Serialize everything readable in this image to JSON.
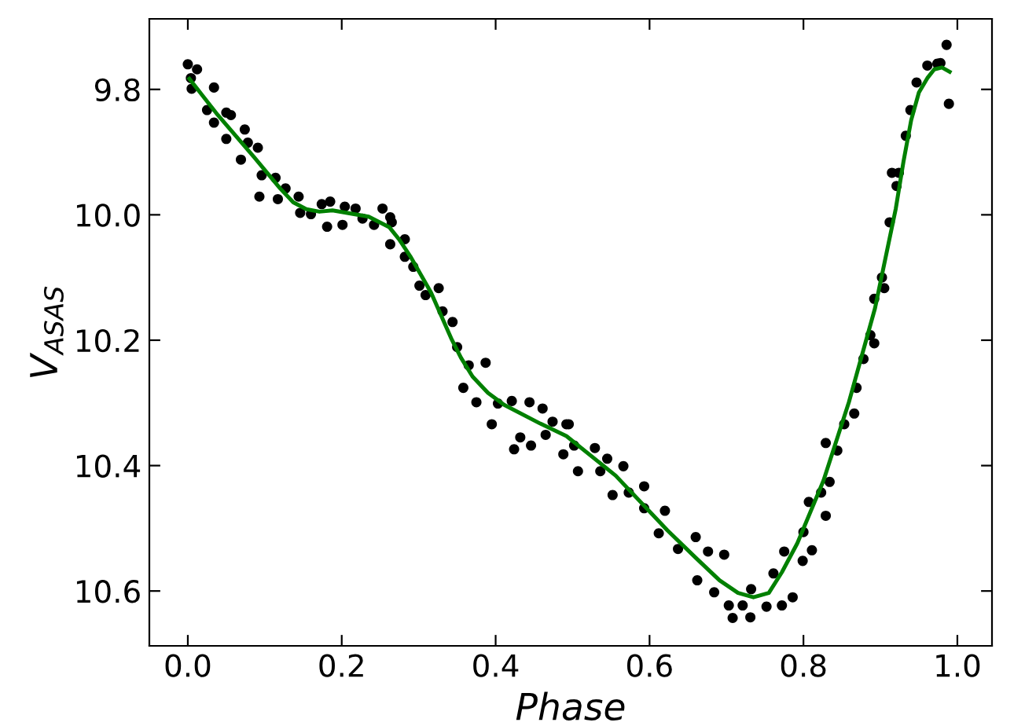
{
  "chart_data": {
    "type": "scatter",
    "xlabel": "Phase",
    "ylabel": "V$_{ASAS}$",
    "xlim": [
      -0.05,
      1.045
    ],
    "ylim": [
      10.6875,
      9.6875
    ],
    "xticks": [
      {
        "value": 0,
        "label": "0.0"
      },
      0.2,
      0.4,
      0.6,
      0.8,
      {
        "value": 1,
        "label": "1.0"
      }
    ],
    "yticks": [
      9.8,
      {
        "value": 10,
        "label": "10.0"
      },
      10.2,
      10.4,
      10.6
    ],
    "grid": false,
    "legend": false,
    "series": [
      {
        "color": "#000000",
        "marker": "circle",
        "x": [
          0.0,
          0.004,
          0.012,
          0.005,
          0.034,
          0.025,
          0.034,
          0.05,
          0.056,
          0.05,
          0.074,
          0.069,
          0.078,
          0.091,
          0.093,
          0.096,
          0.114,
          0.117,
          0.127,
          0.144,
          0.146,
          0.16,
          0.174,
          0.181,
          0.185,
          0.201,
          0.204,
          0.218,
          0.227,
          0.242,
          0.253,
          0.263,
          0.265,
          0.263,
          0.282,
          0.282,
          0.293,
          0.301,
          0.309,
          0.326,
          0.331,
          0.344,
          0.35,
          0.358,
          0.365,
          0.375,
          0.387,
          0.395,
          0.403,
          0.421,
          0.424,
          0.432,
          0.444,
          0.446,
          0.461,
          0.465,
          0.474,
          0.488,
          0.492,
          0.495,
          0.507,
          0.502,
          0.529,
          0.536,
          0.545,
          0.552,
          0.566,
          0.573,
          0.593,
          0.593,
          0.612,
          0.62,
          0.637,
          0.66,
          0.662,
          0.676,
          0.684,
          0.697,
          0.703,
          0.708,
          0.721,
          0.731,
          0.732,
          0.752,
          0.761,
          0.772,
          0.786,
          0.775,
          0.799,
          0.8,
          0.811,
          0.807,
          0.829,
          0.823,
          0.834,
          0.829,
          0.844,
          0.853,
          0.866,
          0.869,
          0.878,
          0.892,
          0.887,
          0.892,
          0.902,
          0.905,
          0.912,
          0.915,
          0.924,
          0.921,
          0.933,
          0.939,
          0.947,
          0.961,
          0.974,
          0.986,
          0.989,
          0.978
        ],
        "values": [
          9.76,
          9.782,
          9.768,
          9.799,
          9.797,
          9.833,
          9.853,
          9.837,
          9.841,
          9.879,
          9.864,
          9.912,
          9.885,
          9.893,
          9.971,
          9.937,
          9.941,
          9.975,
          9.958,
          9.971,
          9.997,
          9.999,
          9.983,
          10.019,
          9.979,
          10.016,
          9.987,
          9.99,
          10.006,
          10.016,
          9.99,
          10.004,
          10.012,
          10.047,
          10.039,
          10.067,
          10.083,
          10.113,
          10.128,
          10.117,
          10.154,
          10.171,
          10.211,
          10.276,
          10.24,
          10.299,
          10.236,
          10.334,
          10.301,
          10.297,
          10.374,
          10.355,
          10.299,
          10.368,
          10.309,
          10.351,
          10.33,
          10.382,
          10.334,
          10.334,
          10.409,
          10.368,
          10.372,
          10.409,
          10.389,
          10.447,
          10.401,
          10.443,
          10.433,
          10.468,
          10.508,
          10.472,
          10.533,
          10.514,
          10.583,
          10.537,
          10.602,
          10.542,
          10.623,
          10.643,
          10.623,
          10.642,
          10.597,
          10.625,
          10.572,
          10.623,
          10.61,
          10.537,
          10.552,
          10.506,
          10.535,
          10.458,
          10.48,
          10.443,
          10.426,
          10.364,
          10.376,
          10.334,
          10.317,
          10.276,
          10.23,
          10.205,
          10.192,
          10.134,
          10.1,
          10.117,
          10.012,
          9.933,
          9.933,
          9.954,
          9.874,
          9.833,
          9.789,
          9.762,
          9.759,
          9.729,
          9.823,
          9.758
        ]
      },
      {
        "type": "line",
        "color": "#008000",
        "line_style": "solid",
        "marker": "none",
        "x": [
          0.002,
          0.039,
          0.086,
          0.12,
          0.137,
          0.154,
          0.171,
          0.188,
          0.235,
          0.262,
          0.275,
          0.289,
          0.316,
          0.343,
          0.355,
          0.37,
          0.39,
          0.411,
          0.458,
          0.492,
          0.556,
          0.623,
          0.66,
          0.691,
          0.715,
          0.735,
          0.755,
          0.772,
          0.792,
          0.826,
          0.859,
          0.893,
          0.92,
          0.93,
          0.94,
          0.95,
          0.961,
          0.97,
          0.98,
          0.99
        ],
        "values": [
          9.783,
          9.841,
          9.908,
          9.958,
          9.98,
          9.991,
          9.995,
          9.993,
          10.003,
          10.02,
          10.04,
          10.066,
          10.124,
          10.199,
          10.228,
          10.258,
          10.284,
          10.303,
          10.333,
          10.353,
          10.416,
          10.503,
          10.547,
          10.583,
          10.603,
          10.61,
          10.603,
          10.57,
          10.524,
          10.424,
          10.299,
          10.149,
          9.99,
          9.915,
          9.849,
          9.805,
          9.782,
          9.768,
          9.765,
          9.772
        ]
      }
    ]
  }
}
